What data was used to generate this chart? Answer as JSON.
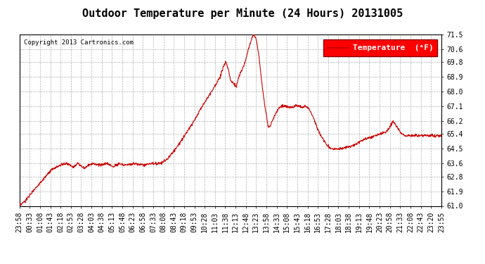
{
  "title": "Outdoor Temperature per Minute (24 Hours) 20131005",
  "copyright_text": "Copyright 2013 Cartronics.com",
  "legend_label": "Temperature  (°F)",
  "ylabel_ticks": [
    61.0,
    61.9,
    62.8,
    63.6,
    64.5,
    65.4,
    66.2,
    67.1,
    68.0,
    68.9,
    69.8,
    70.6,
    71.5
  ],
  "xtick_labels": [
    "23:58",
    "00:33",
    "01:08",
    "01:43",
    "02:18",
    "02:53",
    "03:28",
    "04:03",
    "04:38",
    "05:13",
    "05:48",
    "06:23",
    "06:58",
    "07:33",
    "08:08",
    "08:43",
    "09:18",
    "09:53",
    "10:28",
    "11:03",
    "11:38",
    "12:13",
    "12:48",
    "13:23",
    "13:58",
    "14:33",
    "15:08",
    "15:43",
    "16:18",
    "16:53",
    "17:28",
    "18:03",
    "18:38",
    "19:13",
    "19:48",
    "20:23",
    "20:58",
    "21:33",
    "22:08",
    "22:43",
    "23:20",
    "23:55"
  ],
  "line_color": "#cc0000",
  "background_color": "#ffffff",
  "grid_color": "#b0b0b0",
  "title_fontsize": 11,
  "tick_fontsize": 7,
  "copyright_fontsize": 6.5,
  "legend_fontsize": 8,
  "keypoints": [
    [
      0,
      61.0
    ],
    [
      20,
      61.3
    ],
    [
      50,
      62.0
    ],
    [
      80,
      62.6
    ],
    [
      110,
      63.2
    ],
    [
      140,
      63.5
    ],
    [
      160,
      63.6
    ],
    [
      185,
      63.4
    ],
    [
      200,
      63.6
    ],
    [
      220,
      63.3
    ],
    [
      235,
      63.5
    ],
    [
      250,
      63.6
    ],
    [
      280,
      63.5
    ],
    [
      300,
      63.6
    ],
    [
      320,
      63.4
    ],
    [
      340,
      63.6
    ],
    [
      360,
      63.5
    ],
    [
      390,
      63.6
    ],
    [
      420,
      63.5
    ],
    [
      450,
      63.6
    ],
    [
      480,
      63.6
    ],
    [
      500,
      63.8
    ],
    [
      520,
      64.2
    ],
    [
      545,
      64.8
    ],
    [
      570,
      65.5
    ],
    [
      595,
      66.2
    ],
    [
      620,
      67.0
    ],
    [
      645,
      67.7
    ],
    [
      665,
      68.3
    ],
    [
      685,
      68.9
    ],
    [
      695,
      69.5
    ],
    [
      703,
      69.8
    ],
    [
      712,
      69.4
    ],
    [
      720,
      68.7
    ],
    [
      730,
      68.5
    ],
    [
      740,
      68.3
    ],
    [
      748,
      68.9
    ],
    [
      758,
      69.3
    ],
    [
      768,
      69.7
    ],
    [
      778,
      70.4
    ],
    [
      788,
      71.0
    ],
    [
      797,
      71.5
    ],
    [
      808,
      71.2
    ],
    [
      818,
      70.0
    ],
    [
      828,
      68.3
    ],
    [
      838,
      67.0
    ],
    [
      848,
      65.9
    ],
    [
      855,
      65.9
    ],
    [
      865,
      66.3
    ],
    [
      875,
      66.7
    ],
    [
      885,
      67.0
    ],
    [
      895,
      67.1
    ],
    [
      910,
      67.1
    ],
    [
      925,
      67.0
    ],
    [
      940,
      67.1
    ],
    [
      955,
      67.1
    ],
    [
      965,
      67.0
    ],
    [
      975,
      67.1
    ],
    [
      985,
      67.0
    ],
    [
      995,
      66.7
    ],
    [
      1005,
      66.3
    ],
    [
      1015,
      65.8
    ],
    [
      1025,
      65.4
    ],
    [
      1035,
      65.1
    ],
    [
      1045,
      64.8
    ],
    [
      1055,
      64.6
    ],
    [
      1065,
      64.5
    ],
    [
      1080,
      64.5
    ],
    [
      1100,
      64.5
    ],
    [
      1120,
      64.6
    ],
    [
      1140,
      64.7
    ],
    [
      1160,
      64.9
    ],
    [
      1180,
      65.1
    ],
    [
      1200,
      65.2
    ],
    [
      1215,
      65.3
    ],
    [
      1230,
      65.4
    ],
    [
      1248,
      65.5
    ],
    [
      1263,
      65.8
    ],
    [
      1275,
      66.2
    ],
    [
      1285,
      65.9
    ],
    [
      1300,
      65.5
    ],
    [
      1315,
      65.3
    ],
    [
      1330,
      65.3
    ],
    [
      1360,
      65.3
    ],
    [
      1390,
      65.3
    ],
    [
      1420,
      65.3
    ],
    [
      1439,
      65.3
    ]
  ]
}
